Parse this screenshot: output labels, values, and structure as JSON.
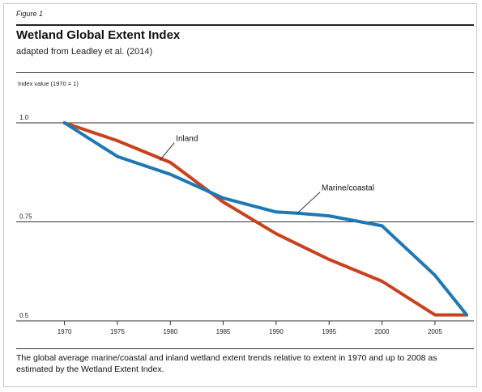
{
  "figure_label": "Figure 1",
  "caption": "The global average marine/coastal and inland wetland extent trends relative to extent in 1970 and up to 2008 as estimated by the Wetland Extent Index.",
  "colors": {
    "inland": "#c8421e",
    "marine": "#1f78b4",
    "grid": "#333333"
  },
  "chart_data": {
    "type": "line",
    "title": "Wetland Global Extent Index",
    "subtitle": "adapted from Leadley et al. (2014)",
    "ylabel": "Index value (1970 = 1)",
    "xlabel": "",
    "xlim": [
      1968.5,
      2008.3
    ],
    "ylim": [
      0.5,
      1.0
    ],
    "x_ticks": [
      1970,
      1975,
      1980,
      1985,
      1990,
      1995,
      2000,
      2005
    ],
    "y_ticks": [
      1.0,
      0.75,
      0.5
    ],
    "y_tick_labels": [
      "1.0",
      "0.75",
      "0.5"
    ],
    "series": [
      {
        "name": "Inland",
        "color": "#c8421e",
        "x": [
          1970,
          1975,
          1980,
          1985,
          1990,
          1995,
          2000,
          2005,
          2008
        ],
        "y": [
          1.0,
          0.955,
          0.9,
          0.8,
          0.72,
          0.655,
          0.6,
          0.515,
          0.515
        ]
      },
      {
        "name": "Marine/coastal",
        "color": "#1f78b4",
        "x": [
          1970,
          1975,
          1980,
          1985,
          1990,
          1992,
          1995,
          2000,
          2005,
          2008
        ],
        "y": [
          1.0,
          0.915,
          0.87,
          0.81,
          0.775,
          0.772,
          0.765,
          0.74,
          0.615,
          0.515
        ]
      }
    ]
  }
}
